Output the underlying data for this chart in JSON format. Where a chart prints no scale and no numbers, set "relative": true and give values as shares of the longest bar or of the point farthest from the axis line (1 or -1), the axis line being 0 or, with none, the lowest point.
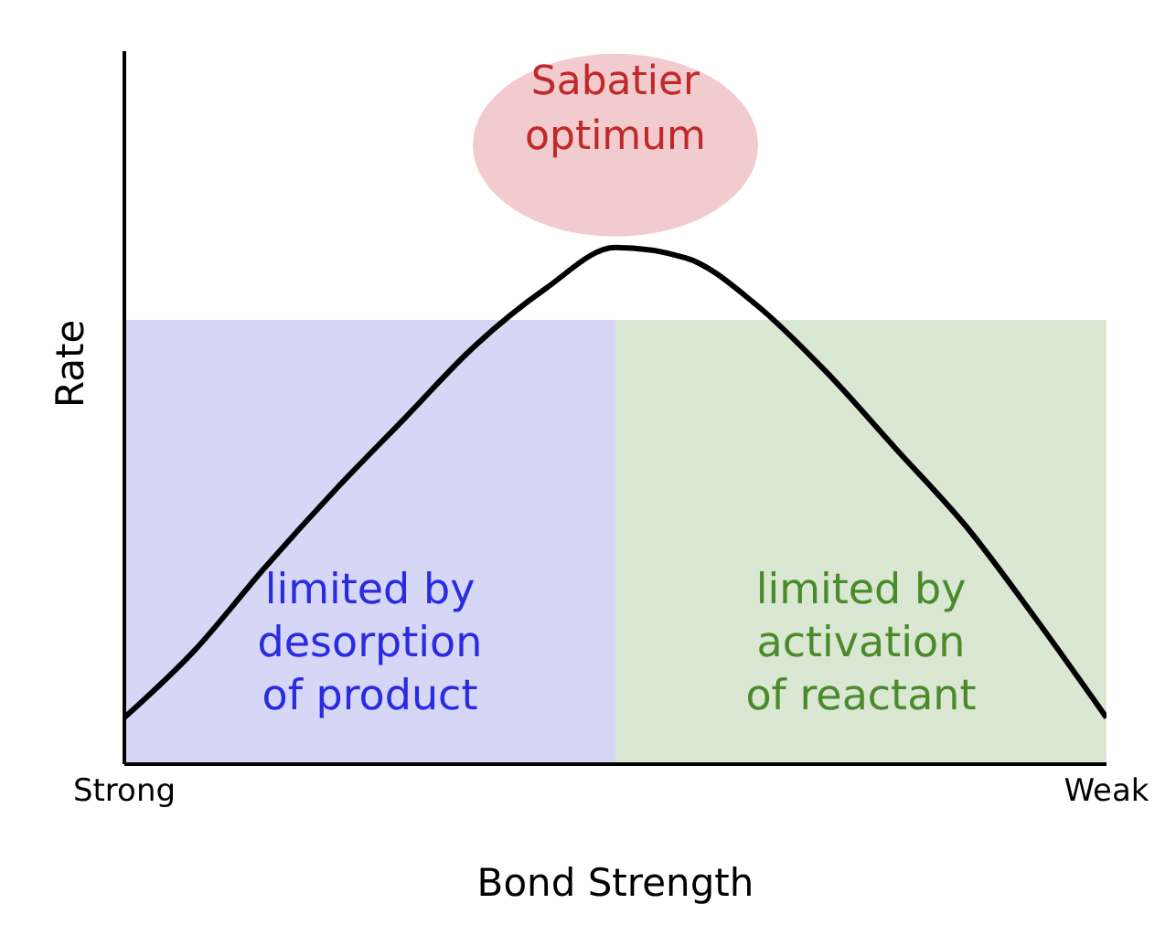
{
  "chart_data": {
    "type": "line",
    "relative": true,
    "xlabel": "Bond Strength",
    "ylabel": "Rate",
    "categories": [
      "Strong",
      null,
      null,
      null,
      null,
      null,
      null,
      null,
      null,
      null,
      null,
      null,
      null,
      null,
      "Weak"
    ],
    "series": [
      {
        "color": "#000000",
        "values": [
          0.09,
          0.22,
          0.38,
          0.53,
          0.67,
          0.81,
          0.92,
          1,
          0.98,
          0.89,
          0.76,
          0.61,
          0.46,
          0.28,
          0.09
        ]
      }
    ],
    "annotations": [
      "Sabatier optimum",
      "limited by desorption of product",
      "limited by activation of reactant"
    ],
    "grid": false,
    "legend": false,
    "marker": "none",
    "line_style": "solid"
  }
}
